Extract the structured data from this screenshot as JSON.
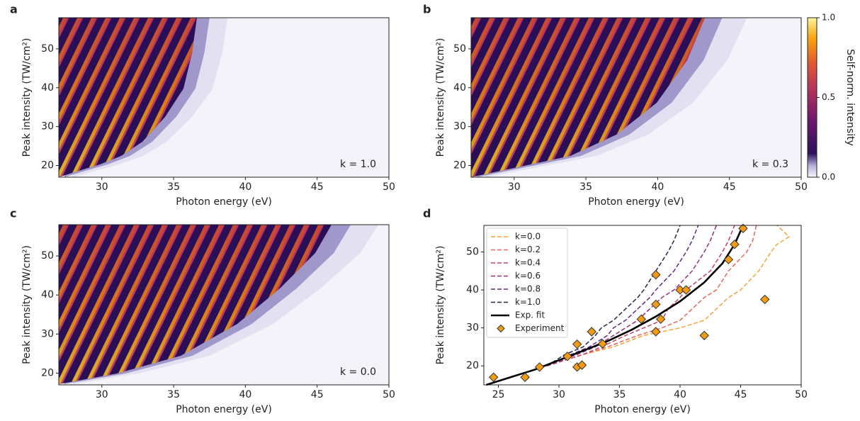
{
  "chart_data": [
    {
      "type": "heatmap",
      "panel": "a",
      "annotation": "k = 1.0",
      "x_label": "Photon energy (eV)",
      "y_label": "Peak intensity (TW/cm²)",
      "xlim": [
        27,
        50
      ],
      "ylim": [
        17,
        58
      ],
      "xticks": [
        30,
        35,
        40,
        45,
        50
      ],
      "yticks": [
        20,
        30,
        40,
        50
      ]
    },
    {
      "type": "heatmap",
      "panel": "b",
      "annotation": "k = 0.3",
      "x_label": "Photon energy (eV)",
      "y_label": "Peak intensity (TW/cm²)",
      "xlim": [
        27,
        50
      ],
      "ylim": [
        17,
        58
      ],
      "xticks": [
        30,
        35,
        40,
        45,
        50
      ],
      "yticks": [
        20,
        30,
        40,
        50
      ],
      "colorbar": {
        "label": "Self-norm. intensity",
        "lim": [
          0,
          1
        ],
        "ticks": [
          {
            "value": 0,
            "label": "0.0"
          },
          {
            "value": 0.5,
            "label": "0.5"
          },
          {
            "value": 1,
            "label": "1.0"
          }
        ]
      }
    },
    {
      "type": "heatmap",
      "panel": "c",
      "annotation": "k = 0.0",
      "x_label": "Photon energy (eV)",
      "y_label": "Peak intensity (TW/cm²)",
      "xlim": [
        27,
        50
      ],
      "ylim": [
        17,
        58
      ],
      "xticks": [
        30,
        35,
        40,
        45,
        50
      ],
      "yticks": [
        20,
        30,
        40,
        50
      ]
    },
    {
      "type": "line",
      "panel": "d",
      "x_label": "Photon energy (eV)",
      "y_label": "Peak intensity (TW/cm²)",
      "xlim": [
        23.8,
        50
      ],
      "ylim": [
        15,
        57
      ],
      "xticks": [
        25,
        30,
        35,
        40,
        45,
        50
      ],
      "yticks": [
        20,
        30,
        40,
        50
      ],
      "legend": "upper left",
      "series": [
        {
          "name": "k=0.0",
          "color": "#f7a13a",
          "linestyle": "dashed",
          "x": [
            29,
            32,
            34.5,
            37,
            40,
            42,
            43,
            44,
            45,
            46.5,
            47.5,
            48,
            49,
            48
          ],
          "values": [
            20,
            23,
            25,
            28,
            30,
            32,
            35,
            38,
            40,
            45,
            50,
            52,
            54,
            57
          ]
        },
        {
          "name": "k=0.2",
          "color": "#e8665a",
          "linestyle": "dashed",
          "x": [
            29,
            32,
            34,
            36.5,
            38.5,
            40,
            41,
            42,
            43,
            44,
            45.5,
            46,
            46.3
          ],
          "values": [
            20,
            23,
            25,
            28,
            30,
            32,
            35,
            38,
            40,
            45,
            50,
            53,
            57
          ]
        },
        {
          "name": "k=0.4",
          "color": "#c2416a",
          "linestyle": "dashed",
          "x": [
            29,
            32,
            33.5,
            35.5,
            37,
            38.5,
            39,
            40,
            40.5,
            42.5,
            43.5,
            44,
            44.5
          ],
          "values": [
            20,
            23,
            25,
            28,
            30,
            32,
            35,
            38,
            40,
            45,
            50,
            53,
            57
          ]
        },
        {
          "name": "k=0.6",
          "color": "#93307f",
          "linestyle": "dashed",
          "x": [
            29,
            31.5,
            33,
            34.5,
            35.5,
            36.5,
            37.5,
            38.5,
            39.5,
            41,
            42,
            42.5,
            43
          ],
          "values": [
            20,
            23,
            25,
            28,
            30,
            32,
            35,
            38,
            40,
            45,
            50,
            53,
            57
          ]
        },
        {
          "name": "k=0.8",
          "color": "#5d2a87",
          "linestyle": "dashed",
          "x": [
            29,
            31,
            32.5,
            34,
            34.5,
            35.5,
            36.5,
            37.5,
            38,
            39.5,
            40.5,
            41,
            41.5
          ],
          "values": [
            20,
            23,
            25,
            28,
            30,
            32,
            35,
            38,
            40,
            45,
            50,
            53,
            57
          ]
        },
        {
          "name": "k=1.0",
          "color": "#2c2345",
          "linestyle": "dashed",
          "x": [
            29,
            30.5,
            32,
            33,
            33.5,
            34.5,
            35.5,
            36.5,
            37,
            38,
            39,
            39.5,
            40
          ],
          "values": [
            20,
            23,
            25,
            28,
            30,
            32,
            35,
            38,
            40,
            45,
            50,
            53,
            57
          ]
        },
        {
          "name": "Exp. fit",
          "color": "#000000",
          "linestyle": "solid",
          "x": [
            24,
            26,
            28,
            30,
            32,
            34,
            36,
            38,
            40,
            42,
            43.5,
            44.5,
            45.2
          ],
          "values": [
            15,
            17,
            19,
            21.5,
            24,
            26.5,
            29.5,
            33,
            37,
            42,
            47,
            52,
            57
          ]
        },
        {
          "name": "Experiment",
          "color": "#f39c12",
          "marker": "diamond",
          "x": [
            24.6,
            27.2,
            28.4,
            30.7,
            31.5,
            31.5,
            31.9,
            32.7,
            33.6,
            36.8,
            38,
            38,
            38,
            38.4,
            40,
            40.5,
            42,
            44,
            44.5,
            45.2,
            47
          ],
          "values": [
            17,
            17,
            19.7,
            22.5,
            25.7,
            19.7,
            20.2,
            29,
            25.8,
            32.3,
            29,
            36.2,
            44,
            32.3,
            40,
            40,
            28,
            48,
            52,
            56.2,
            37.5
          ]
        }
      ]
    }
  ]
}
